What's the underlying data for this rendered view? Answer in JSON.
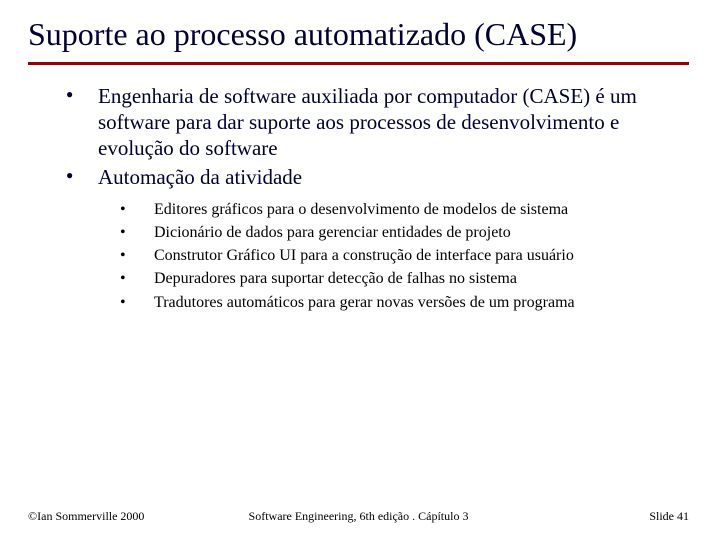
{
  "colors": {
    "title": "#000033",
    "rule": "#990000",
    "body": "#000033",
    "sub": "#000000",
    "background": "#ffffff"
  },
  "typography": {
    "title_fontsize": 32,
    "main_bullet_fontsize": 21,
    "sub_bullet_fontsize": 16,
    "footer_fontsize": 12,
    "font_family": "Times New Roman"
  },
  "title": "Suporte ao processo automatizado (CASE)",
  "main_bullets": [
    "Engenharia de software auxiliada por computador (CASE) é um software para dar suporte aos processos de desenvolvimento e evolução do software",
    "Automação da atividade"
  ],
  "sub_bullets": [
    "Editores gráficos para o desenvolvimento de modelos de sistema",
    "Dicionário de dados para gerenciar entidades de projeto",
    "Construtor Gráfico UI para a construção de interface para usuário",
    "Depuradores para suportar detecção de falhas no sistema",
    "Tradutores automáticos para gerar novas versões de um programa"
  ],
  "footer": {
    "left": "©Ian Sommerville 2000",
    "center": "Software Engineering, 6th edição . Cápítulo 3",
    "right": "Slide  41"
  }
}
